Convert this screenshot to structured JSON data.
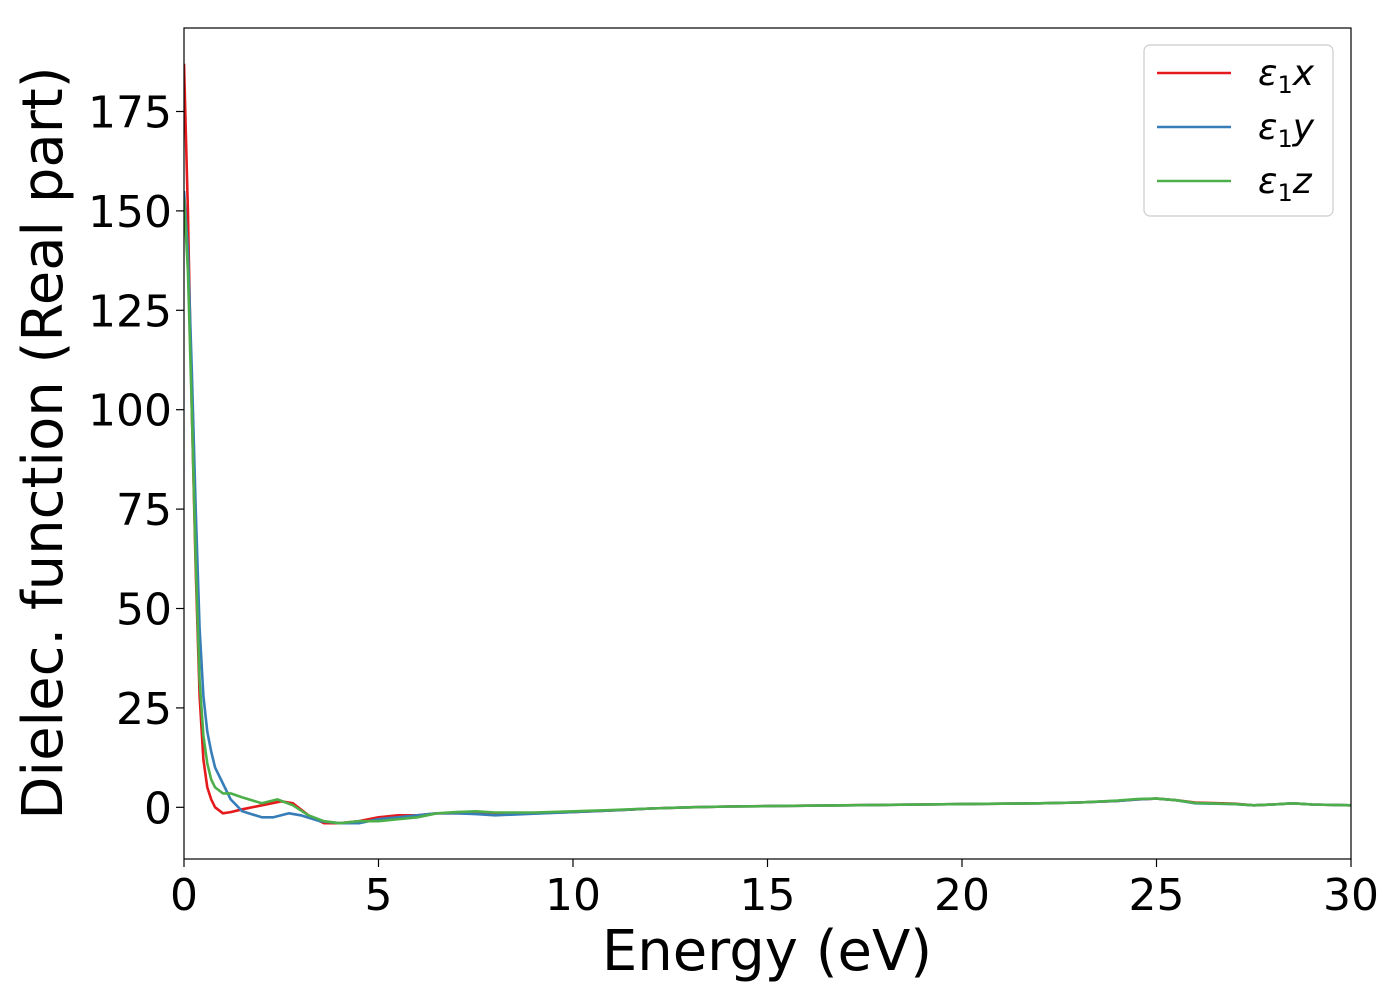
{
  "chart_data": {
    "type": "line",
    "title": "",
    "xlabel": "Energy (eV)",
    "ylabel": "Dielec. function (Real part)",
    "xlim": [
      0,
      30
    ],
    "ylim": [
      -13,
      196
    ],
    "xticks": [
      0,
      5,
      10,
      15,
      20,
      25,
      30
    ],
    "yticks": [
      0,
      25,
      50,
      75,
      100,
      125,
      150,
      175
    ],
    "grid": false,
    "legend_position": "top-right",
    "series": [
      {
        "name": "ε₁x",
        "name_main": "ε",
        "name_sub": "1",
        "name_tail": "x",
        "color": "#e41a1c",
        "x": [
          0,
          0.1,
          0.2,
          0.3,
          0.4,
          0.5,
          0.6,
          0.7,
          0.8,
          1.0,
          1.2,
          1.5,
          2.0,
          2.5,
          2.8,
          3.2,
          3.6,
          4.0,
          4.5,
          5.0,
          5.5,
          6.0,
          6.5,
          7.0,
          7.5,
          8.0,
          9.0,
          10,
          11,
          12,
          13,
          14,
          15,
          16,
          17,
          18,
          19,
          20,
          21,
          22,
          23,
          24,
          24.5,
          25,
          25.5,
          26,
          27,
          27.5,
          28,
          28.5,
          29,
          30
        ],
        "y": [
          187,
          150,
          100,
          60,
          28,
          12,
          5,
          2,
          0,
          -1.5,
          -1.2,
          -0.5,
          0.5,
          1.5,
          1,
          -2,
          -4,
          -4,
          -3.5,
          -2.5,
          -2,
          -2,
          -1.5,
          -1.5,
          -1.5,
          -1.8,
          -1.5,
          -1.2,
          -0.8,
          -0.3,
          0,
          0.2,
          0.3,
          0.4,
          0.5,
          0.6,
          0.7,
          0.8,
          0.9,
          1.0,
          1.2,
          1.6,
          2.0,
          2.2,
          1.8,
          1.2,
          0.9,
          0.5,
          0.7,
          1.0,
          0.7,
          0.5
        ]
      },
      {
        "name": "ε₁y",
        "name_main": "ε",
        "name_sub": "1",
        "name_tail": "y",
        "color": "#377eb8",
        "x": [
          0,
          0.1,
          0.2,
          0.3,
          0.4,
          0.5,
          0.6,
          0.7,
          0.8,
          1.0,
          1.2,
          1.5,
          2.0,
          2.3,
          2.7,
          3.0,
          3.5,
          4.0,
          4.5,
          5.0,
          5.5,
          6.0,
          6.5,
          7.0,
          7.5,
          8.0,
          9.0,
          10,
          11,
          12,
          13,
          14,
          15,
          16,
          17,
          18,
          19,
          20,
          21,
          22,
          23,
          24,
          24.5,
          25,
          25.5,
          26,
          27,
          27.5,
          28,
          28.5,
          29,
          30
        ],
        "y": [
          155,
          140,
          110,
          75,
          45,
          28,
          19,
          14,
          10,
          6,
          2,
          -1,
          -2.5,
          -2.5,
          -1.5,
          -2,
          -3.5,
          -4,
          -4,
          -3,
          -2.5,
          -2,
          -1.5,
          -1.5,
          -1.7,
          -2,
          -1.6,
          -1.2,
          -0.8,
          -0.3,
          0,
          0.2,
          0.3,
          0.4,
          0.5,
          0.6,
          0.7,
          0.8,
          0.9,
          1.0,
          1.2,
          1.6,
          2.0,
          2.2,
          1.8,
          1.0,
          0.8,
          0.5,
          0.7,
          1.0,
          0.7,
          0.5
        ]
      },
      {
        "name": "ε₁z",
        "name_main": "ε",
        "name_sub": "1",
        "name_tail": "z",
        "color": "#4daf4a",
        "x": [
          0,
          0.1,
          0.2,
          0.3,
          0.4,
          0.5,
          0.6,
          0.7,
          0.8,
          1.0,
          1.2,
          1.5,
          2.0,
          2.4,
          2.8,
          3.2,
          3.6,
          4.0,
          4.5,
          5.0,
          5.5,
          6.0,
          6.5,
          7.0,
          7.5,
          8.0,
          9.0,
          10,
          11,
          12,
          13,
          14,
          15,
          16,
          17,
          18,
          19,
          20,
          21,
          22,
          23,
          24,
          24.5,
          25,
          25.5,
          26,
          27,
          27.5,
          28,
          28.5,
          29,
          30
        ],
        "y": [
          153,
          135,
          100,
          62,
          32,
          18,
          11,
          7,
          5,
          3.5,
          3.5,
          2.5,
          1,
          2,
          0.5,
          -2,
          -3.5,
          -4,
          -3.5,
          -3.5,
          -3,
          -2.5,
          -1.5,
          -1.2,
          -1,
          -1.3,
          -1.3,
          -1.0,
          -0.7,
          -0.3,
          0,
          0.2,
          0.3,
          0.4,
          0.5,
          0.6,
          0.7,
          0.8,
          0.9,
          1.0,
          1.2,
          1.7,
          2.1,
          2.2,
          1.8,
          1.1,
          0.8,
          0.5,
          0.7,
          1.0,
          0.7,
          0.5
        ]
      }
    ]
  }
}
